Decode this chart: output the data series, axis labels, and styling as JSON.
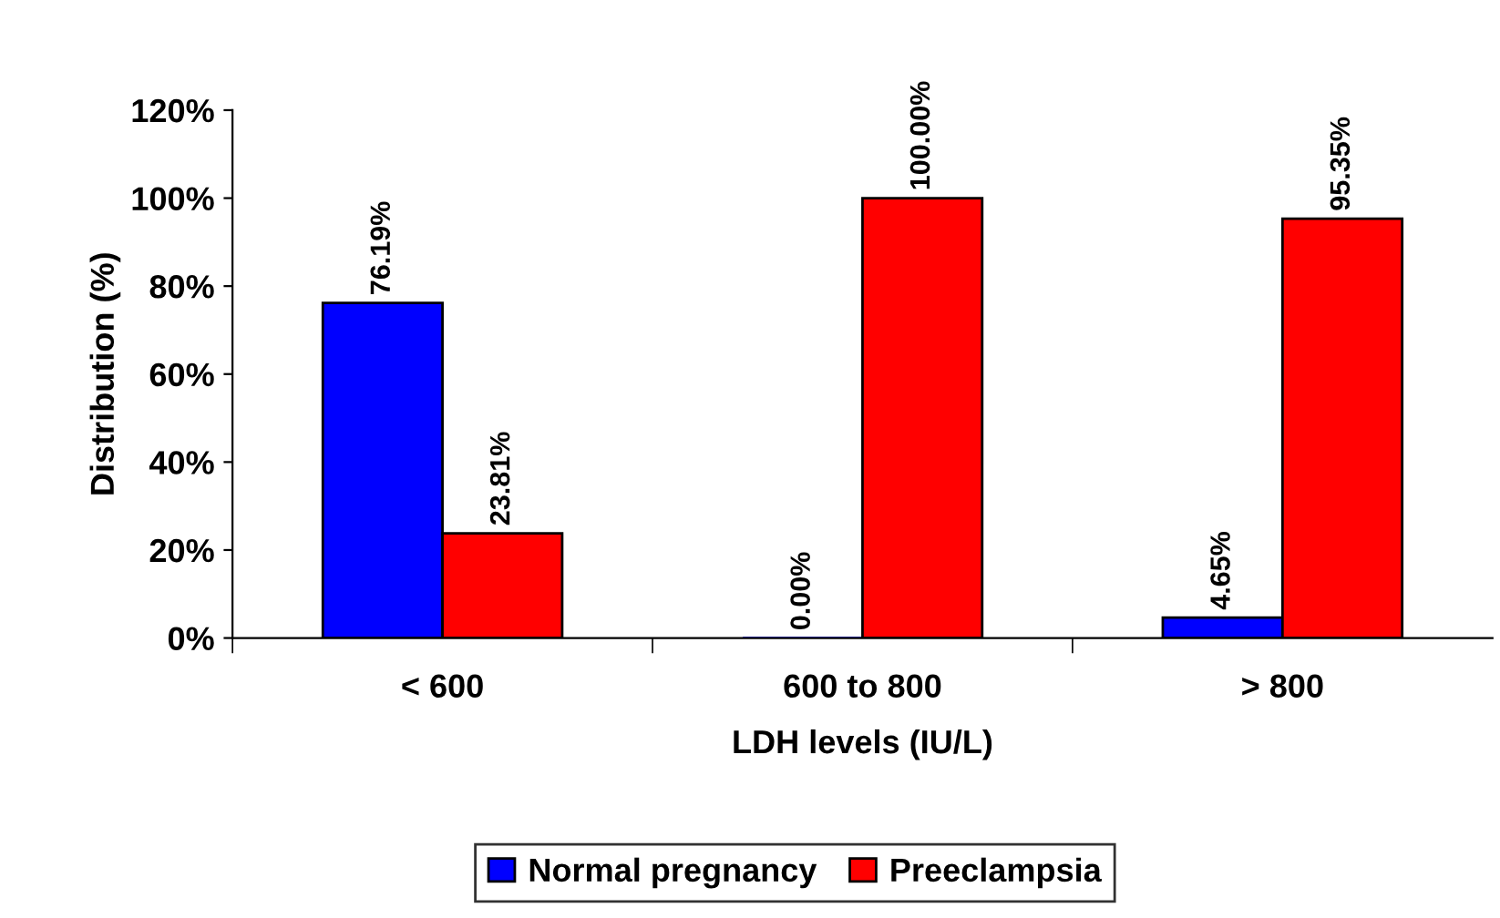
{
  "chart_data": {
    "type": "bar",
    "xlabel": "LDH levels (IU/L)",
    "ylabel": "Distribution (%)",
    "categories": [
      "< 600",
      "600 to 800",
      "> 800"
    ],
    "series": [
      {
        "name": "Normal pregnancy",
        "color": "#0000ff",
        "values": [
          76.19,
          0,
          4.65
        ],
        "value_labels": [
          "76.19%",
          "0.00%",
          "4.65%"
        ]
      },
      {
        "name": "Preeclampsia",
        "color": "#ff0000",
        "values": [
          23.81,
          100,
          95.35
        ],
        "value_labels": [
          "23.81%",
          "100.00%",
          "95.35%"
        ]
      }
    ],
    "ylim": [
      0,
      120
    ],
    "yticks": [
      {
        "value": 0,
        "label": "0%"
      },
      {
        "value": 20,
        "label": "20%"
      },
      {
        "value": 40,
        "label": "40%"
      },
      {
        "value": 60,
        "label": "60%"
      },
      {
        "value": 80,
        "label": "80%"
      },
      {
        "value": 100,
        "label": "100%"
      },
      {
        "value": 120,
        "label": "120%"
      }
    ],
    "grid": false,
    "legend": "bottom"
  }
}
